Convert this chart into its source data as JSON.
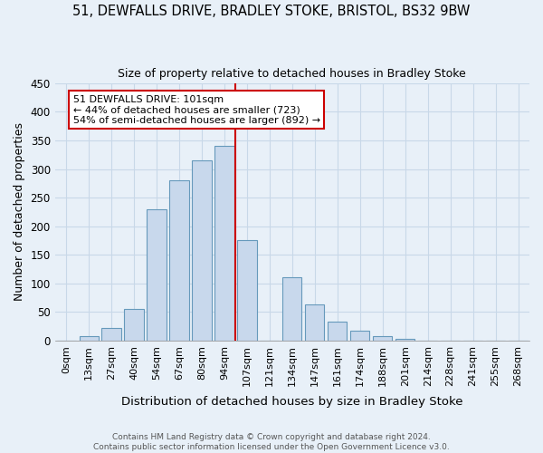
{
  "title": "51, DEWFALLS DRIVE, BRADLEY STOKE, BRISTOL, BS32 9BW",
  "subtitle": "Size of property relative to detached houses in Bradley Stoke",
  "xlabel": "Distribution of detached houses by size in Bradley Stoke",
  "ylabel": "Number of detached properties",
  "bar_labels": [
    "0sqm",
    "13sqm",
    "27sqm",
    "40sqm",
    "54sqm",
    "67sqm",
    "80sqm",
    "94sqm",
    "107sqm",
    "121sqm",
    "134sqm",
    "147sqm",
    "161sqm",
    "174sqm",
    "188sqm",
    "201sqm",
    "214sqm",
    "228sqm",
    "241sqm",
    "255sqm",
    "268sqm"
  ],
  "bar_values": [
    0,
    7,
    22,
    55,
    230,
    280,
    315,
    340,
    175,
    0,
    110,
    63,
    33,
    18,
    8,
    3,
    0,
    0,
    0,
    0,
    0
  ],
  "bar_color": "#c8d8ec",
  "bar_edge_color": "#6699bb",
  "grid_color": "#c8d8e8",
  "background_color": "#e8f0f8",
  "vline_color": "#cc0000",
  "vline_x_idx": 8,
  "annotation_title": "51 DEWFALLS DRIVE: 101sqm",
  "annotation_line1": "← 44% of detached houses are smaller (723)",
  "annotation_line2": "54% of semi-detached houses are larger (892) →",
  "annotation_box_color": "#ffffff",
  "annotation_box_edge": "#cc0000",
  "ylim": [
    0,
    450
  ],
  "yticks": [
    0,
    50,
    100,
    150,
    200,
    250,
    300,
    350,
    400,
    450
  ],
  "footnote1": "Contains HM Land Registry data © Crown copyright and database right 2024.",
  "footnote2": "Contains public sector information licensed under the Open Government Licence v3.0."
}
